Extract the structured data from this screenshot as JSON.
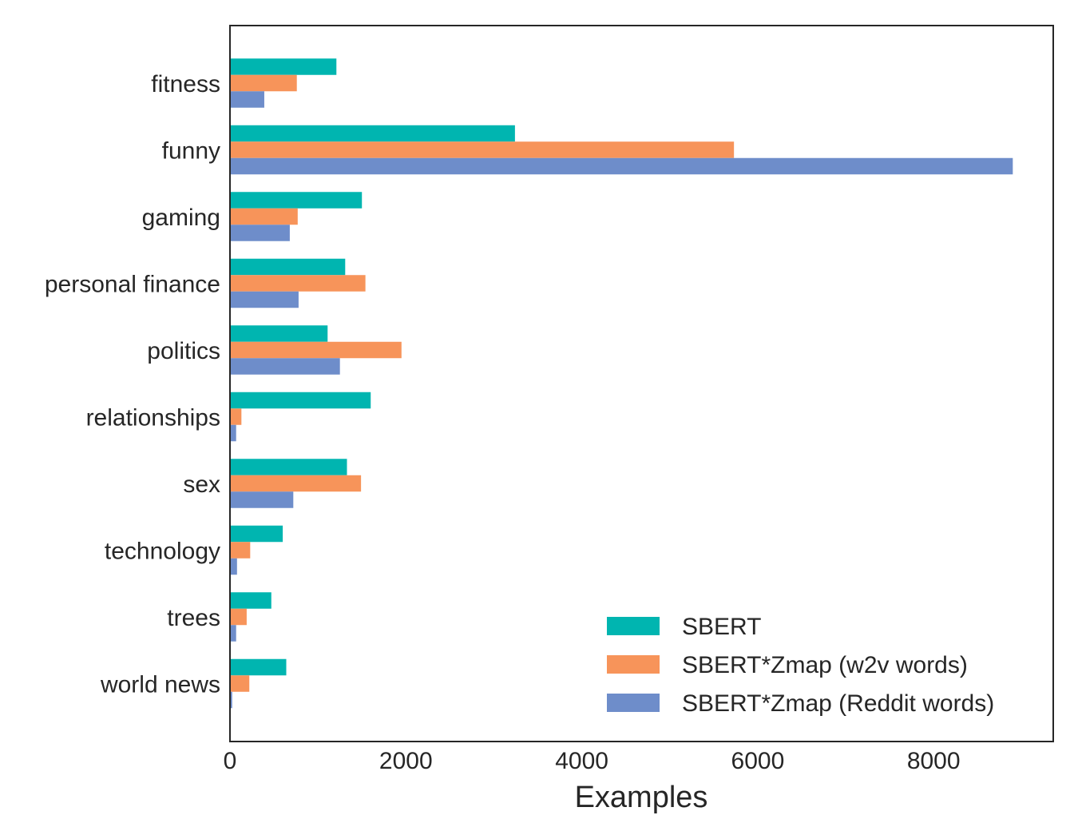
{
  "chart_data": {
    "type": "bar",
    "orientation": "horizontal",
    "categories": [
      "fitness",
      "funny",
      "gaming",
      "personal finance",
      "politics",
      "relationships",
      "sex",
      "technology",
      "trees",
      "world news"
    ],
    "series": [
      {
        "name": "SBERT",
        "color": "#00b5b0",
        "values": [
          1210,
          3240,
          1500,
          1310,
          1110,
          1600,
          1330,
          600,
          470,
          640
        ]
      },
      {
        "name": "SBERT*Zmap (w2v words)",
        "color": "#f7945a",
        "values": [
          760,
          5730,
          770,
          1540,
          1950,
          130,
          1490,
          230,
          190,
          220
        ]
      },
      {
        "name": "SBERT*Zmap (Reddit words)",
        "color": "#6e8dca",
        "values": [
          390,
          8900,
          680,
          780,
          1250,
          70,
          720,
          80,
          70,
          25
        ]
      }
    ],
    "xlabel": "Examples",
    "ylabel": "",
    "xlim": [
      0,
      9360
    ],
    "xticks": [
      0,
      2000,
      4000,
      6000,
      8000
    ],
    "xtick_labels": [
      "0",
      "2000",
      "4000",
      "6000",
      "8000"
    ],
    "grid": false,
    "legend_position": "lower-right"
  }
}
